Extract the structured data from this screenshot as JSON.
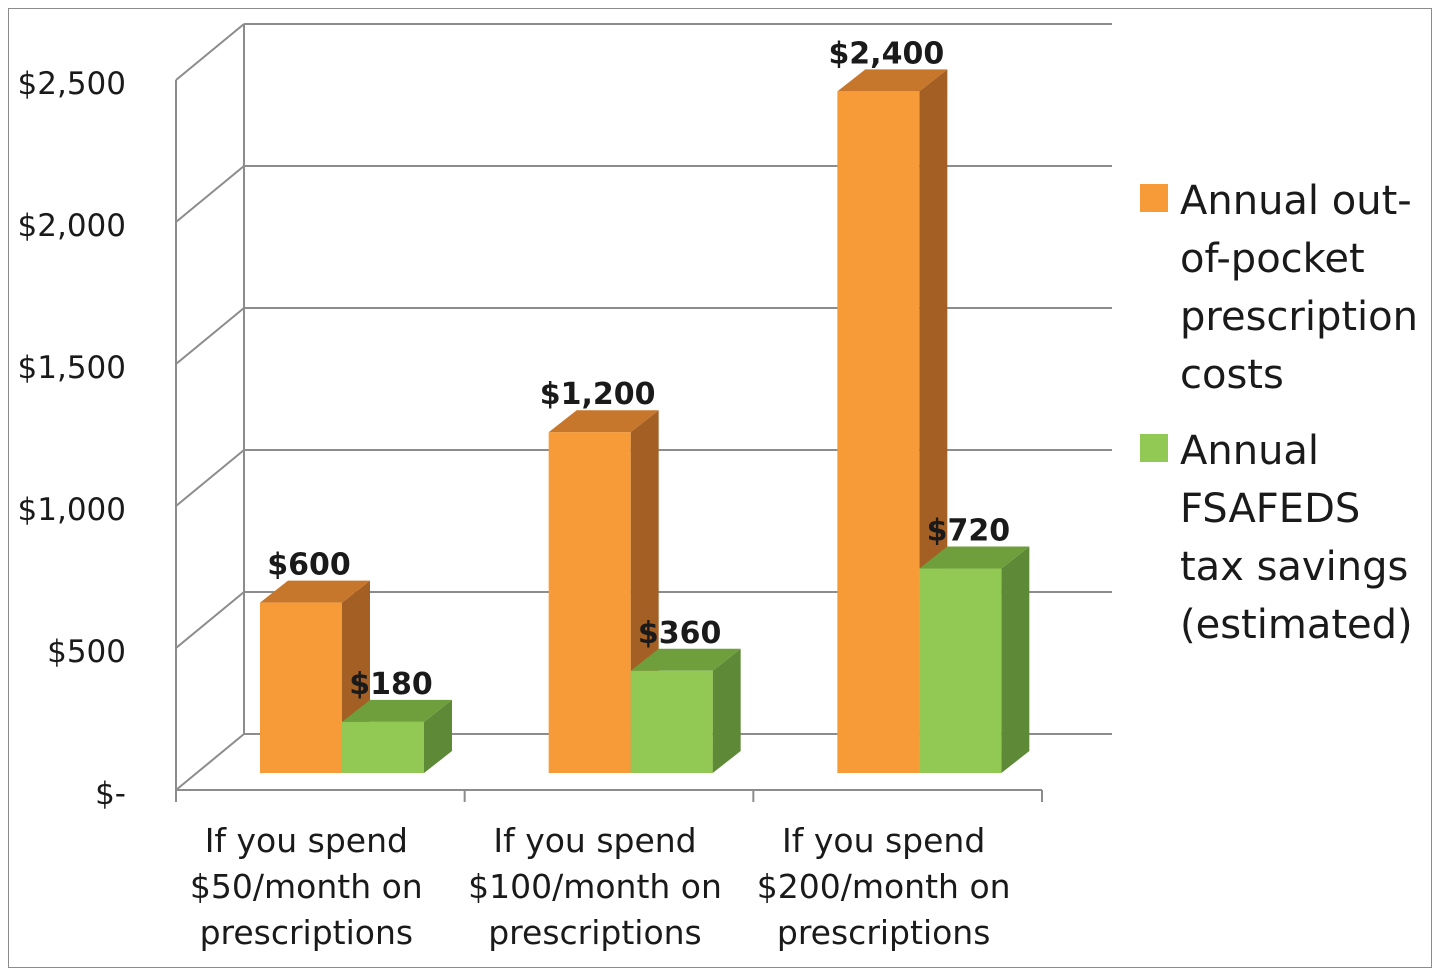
{
  "chart_data": {
    "type": "bar",
    "style": "3d-clustered-column",
    "categories": [
      [
        "If you spend",
        "$50/month on",
        "prescriptions"
      ],
      [
        "If you spend",
        "$100/month on",
        "prescriptions"
      ],
      [
        "If you spend",
        "$200/month on",
        "prescriptions"
      ]
    ],
    "series": [
      {
        "name": "Annual out-of-pocket prescription costs",
        "legend_lines": [
          "Annual out-",
          "of-pocket",
          "prescription",
          "costs"
        ],
        "values": [
          600,
          1200,
          2400
        ],
        "labels": [
          "$600",
          "$1,200",
          "$2,400"
        ],
        "color": "#f79a38",
        "side_color": "#a35f24",
        "top_color": "#c7772c"
      },
      {
        "name": "Annual FSAFEDS tax savings (estimated)",
        "legend_lines": [
          "Annual",
          "FSAFEDS",
          "tax savings",
          "(estimated)"
        ],
        "values": [
          180,
          360,
          720
        ],
        "labels": [
          "$180",
          "$360",
          "$720"
        ],
        "color": "#92c955",
        "side_color": "#5e8a37",
        "top_color": "#6f9f3d"
      }
    ],
    "y_ticks": [
      0,
      500,
      1000,
      1500,
      2000,
      2500
    ],
    "y_tick_labels": [
      "$-",
      "$500",
      "$1,000",
      "$1,500",
      "$2,000",
      "$2,500"
    ],
    "ylim": [
      0,
      2500
    ],
    "grid": true,
    "legend_position": "right"
  }
}
